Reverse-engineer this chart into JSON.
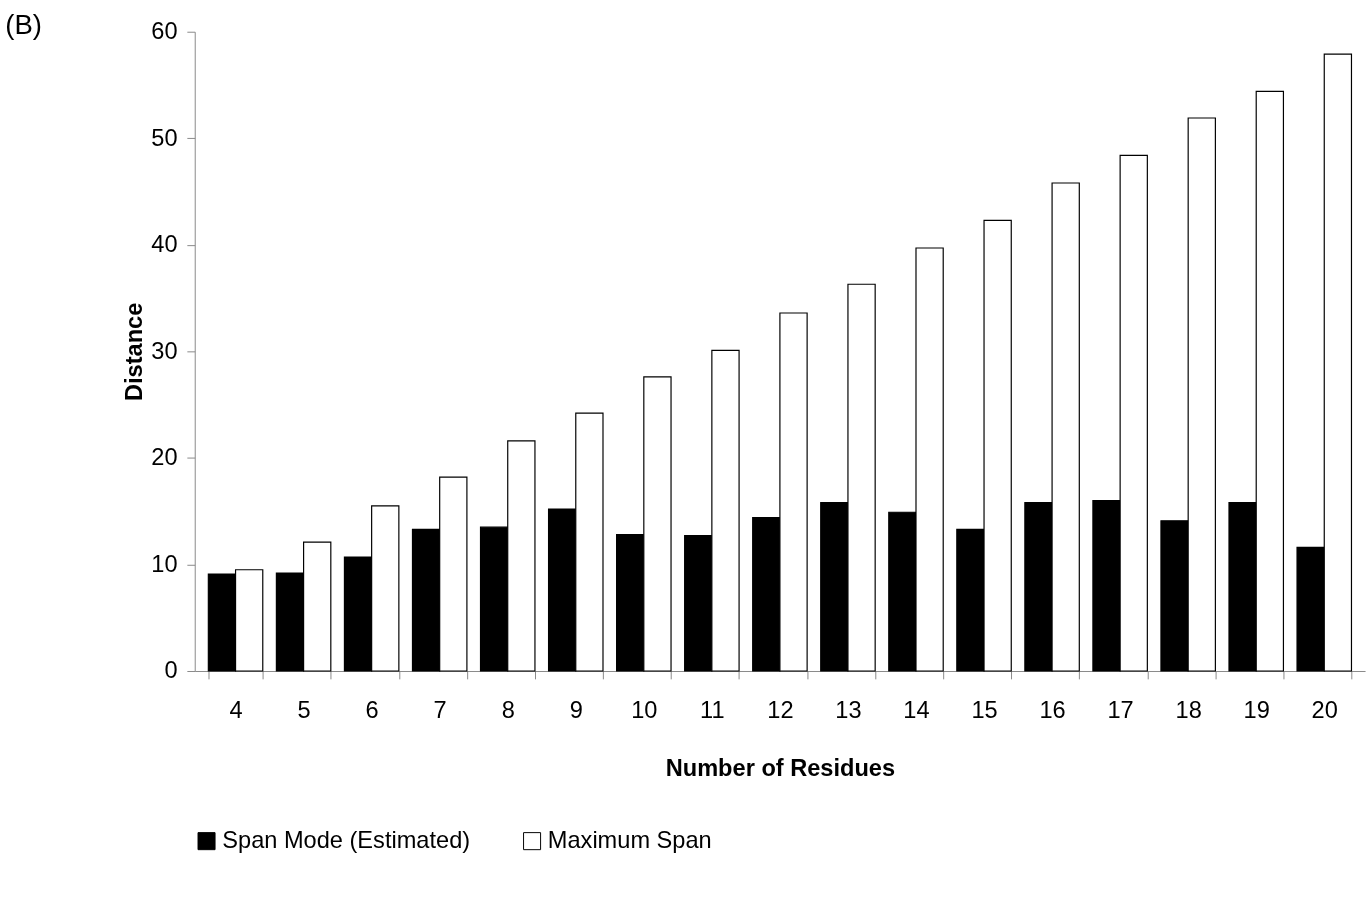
{
  "chart_data": {
    "type": "bar",
    "title": "(B)",
    "xlabel": "Number of Residues",
    "ylabel": "Distance",
    "categories": [
      "4",
      "5",
      "6",
      "7",
      "8",
      "9",
      "10",
      "11",
      "12",
      "13",
      "14",
      "15",
      "16",
      "17",
      "18",
      "19",
      "20"
    ],
    "series": [
      {
        "name": "Span Mode (Estimated)",
        "color": "#000000",
        "values": [
          9.1,
          9.2,
          10.7,
          13.3,
          13.5,
          15.2,
          12.8,
          12.7,
          14.4,
          15.8,
          14.9,
          13.3,
          15.8,
          16.0,
          14.1,
          15.8,
          11.6
        ]
      },
      {
        "name": "Maximum Span",
        "color": "#ffffff",
        "values": [
          9.5,
          12.1,
          15.5,
          18.2,
          21.6,
          24.2,
          27.6,
          30.1,
          33.6,
          36.3,
          39.7,
          42.3,
          45.8,
          48.4,
          51.9,
          54.4,
          57.9
        ]
      }
    ],
    "ylim": [
      0,
      60
    ],
    "yticks": [
      0,
      10,
      20,
      30,
      40,
      50,
      60
    ],
    "grid": false,
    "legend": "bottom"
  }
}
